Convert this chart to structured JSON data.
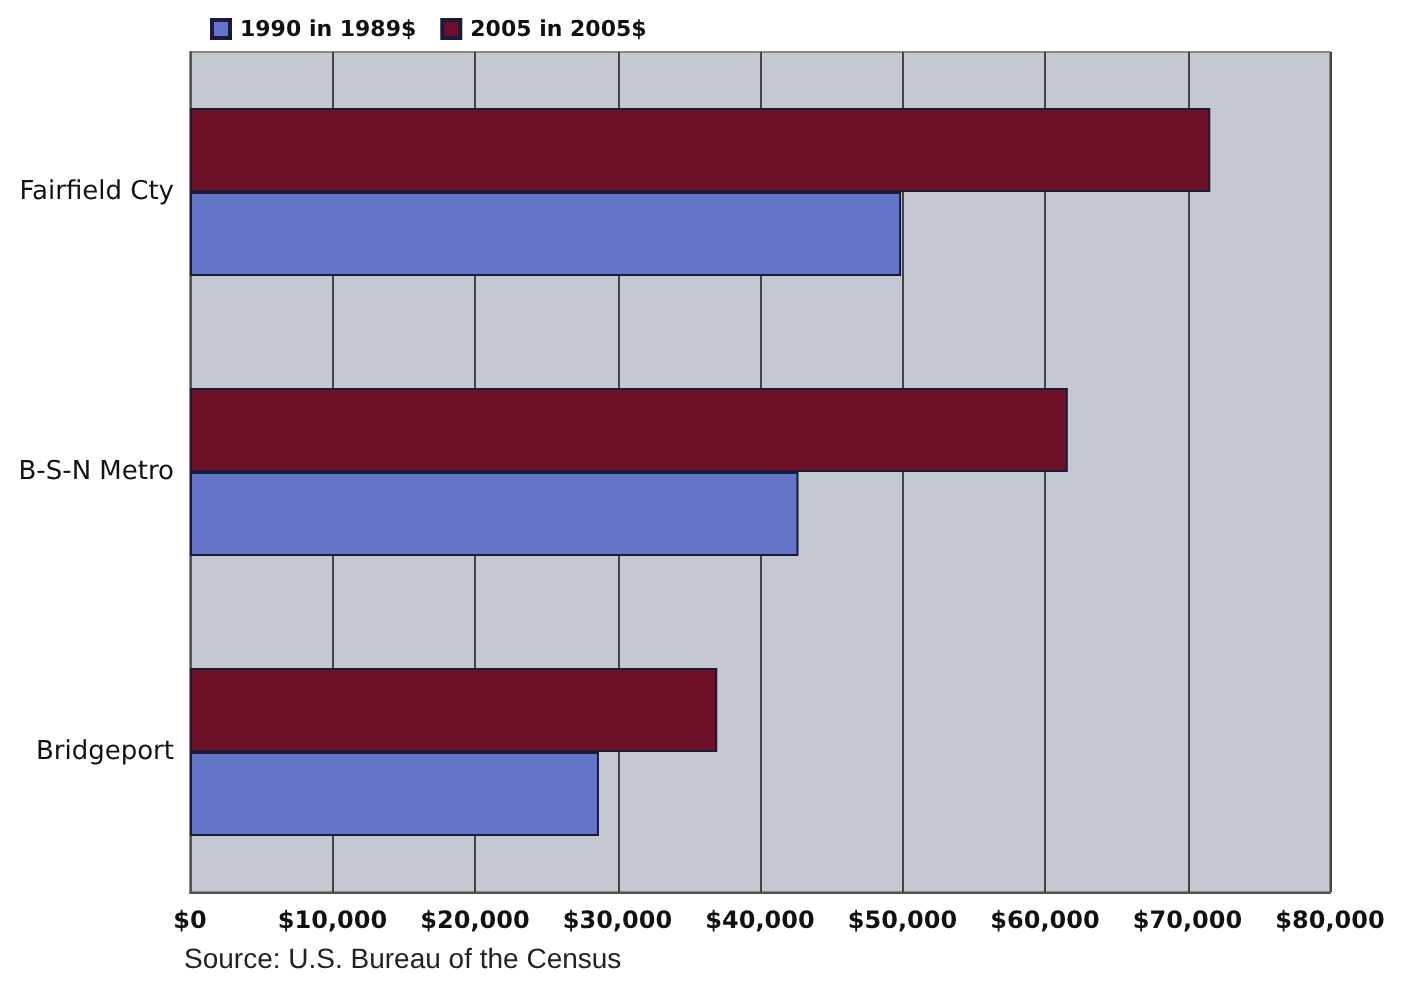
{
  "chart_data": {
    "type": "bar",
    "orientation": "horizontal",
    "categories": [
      "Fairfield Cty",
      "B-S-N Metro",
      "Bridgeport"
    ],
    "series": [
      {
        "name": "1990 in 1989$",
        "color": "#6474c8",
        "values": [
          49900,
          42700,
          28700
        ]
      },
      {
        "name": "2005 in 2005$",
        "color": "#6e1028",
        "values": [
          71600,
          61600,
          37000
        ]
      }
    ],
    "xlim": [
      0,
      80000
    ],
    "xticks": [
      {
        "value": 0,
        "label": "$0"
      },
      {
        "value": 10000,
        "label": "$10,000"
      },
      {
        "value": 20000,
        "label": "$20,000"
      },
      {
        "value": 30000,
        "label": "$30,000"
      },
      {
        "value": 40000,
        "label": "$40,000"
      },
      {
        "value": 50000,
        "label": "$50,000"
      },
      {
        "value": 60000,
        "label": "$60,000"
      },
      {
        "value": 70000,
        "label": "$70,000"
      },
      {
        "value": 80000,
        "label": "$80,000"
      }
    ],
    "grid": "x",
    "legend": "top left",
    "annotations": [
      "Source: U.S. Bureau of the Census"
    ]
  }
}
